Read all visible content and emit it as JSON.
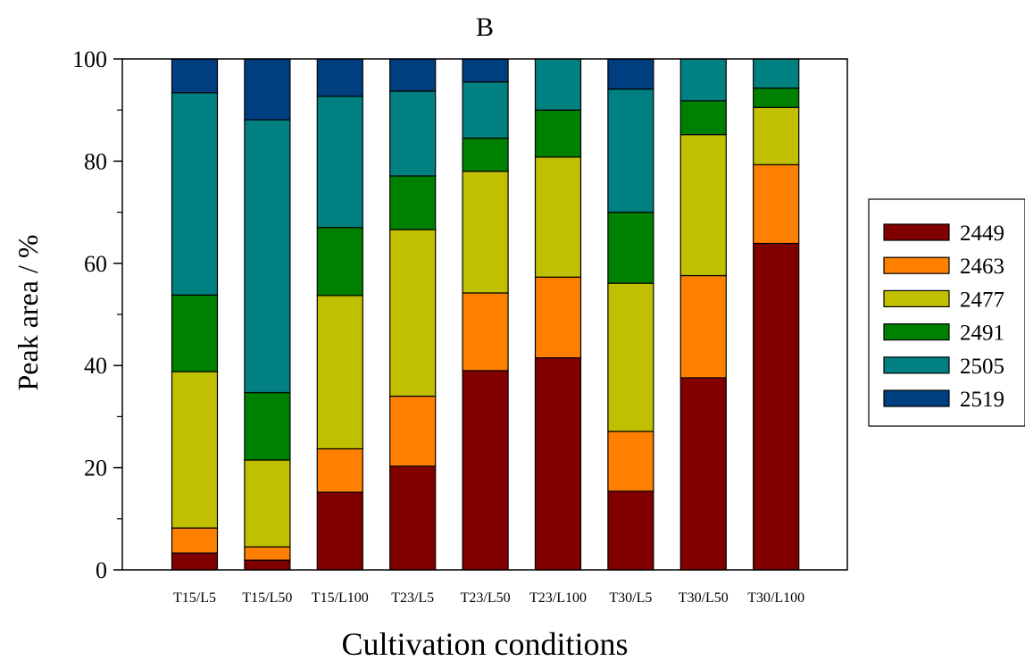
{
  "chart_data": {
    "type": "bar",
    "stacked": true,
    "title": "B",
    "xlabel": "Cultivation conditions",
    "ylabel": "Peak area / %",
    "ylim": [
      0,
      100
    ],
    "yticks": [
      0,
      20,
      40,
      60,
      80,
      100
    ],
    "grid": false,
    "legend_position": "right",
    "categories": [
      "T15/L5",
      "T15/L50",
      "T15/L100",
      "T23/L5",
      "T23/L50",
      "T23/L100",
      "T30/L5",
      "T30/L50",
      "T30/L100"
    ],
    "series": [
      {
        "name": "2449",
        "color": "#800000",
        "values": [
          3.3,
          1.9,
          15.2,
          20.3,
          39.0,
          41.5,
          15.4,
          37.6,
          63.9
        ]
      },
      {
        "name": "2463",
        "color": "#ff8000",
        "values": [
          4.9,
          2.6,
          8.5,
          13.7,
          15.2,
          15.8,
          11.7,
          20.0,
          15.4
        ]
      },
      {
        "name": "2477",
        "color": "#c0c000",
        "values": [
          30.6,
          17.0,
          30.0,
          32.6,
          23.8,
          23.5,
          29.0,
          27.6,
          11.2
        ]
      },
      {
        "name": "2491",
        "color": "#008000",
        "values": [
          15.0,
          13.2,
          13.3,
          10.5,
          6.5,
          9.2,
          13.9,
          6.6,
          3.8
        ]
      },
      {
        "name": "2505",
        "color": "#008080",
        "values": [
          39.6,
          53.4,
          25.7,
          16.6,
          11.0,
          10.0,
          24.1,
          8.2,
          5.7
        ]
      },
      {
        "name": "2519",
        "color": "#003f7f",
        "values": [
          6.6,
          11.9,
          7.3,
          6.3,
          4.5,
          0.0,
          5.9,
          0.0,
          0.0
        ]
      }
    ]
  }
}
